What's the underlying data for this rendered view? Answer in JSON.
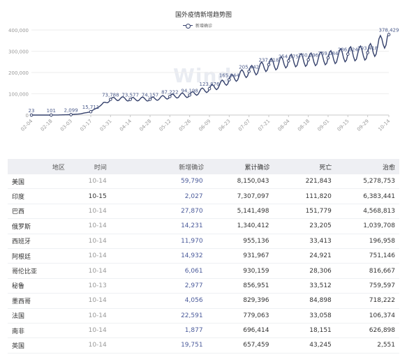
{
  "chart_data": {
    "type": "line",
    "title": "国外疫情新增趋势图",
    "watermark": "Wind",
    "series": [
      {
        "name": "新增确诊",
        "color": "#34406b"
      }
    ],
    "ylim": [
      0,
      400000
    ],
    "yticks": [
      "0",
      "100,000",
      "200,000",
      "300,000",
      "400,000"
    ],
    "xticks": [
      "02-04",
      "02-18",
      "03-03",
      "03-17",
      "03-31",
      "04-14",
      "04-28",
      "05-12",
      "05-26",
      "06-09",
      "06-23",
      "07-07",
      "07-21",
      "08-04",
      "08-18",
      "09-01",
      "09-15",
      "09-29",
      "10-14"
    ],
    "grid": true,
    "anchors": [
      {
        "x": "02-04",
        "y": 23
      },
      {
        "x": "02-11",
        "y": 50
      },
      {
        "x": "02-18",
        "y": 101
      },
      {
        "x": "02-25",
        "y": 600
      },
      {
        "x": "03-03",
        "y": 2099
      },
      {
        "x": "03-10",
        "y": 6000
      },
      {
        "x": "03-17",
        "y": 15711
      },
      {
        "x": "03-24",
        "y": 45000
      },
      {
        "x": "03-31",
        "y": 73788
      },
      {
        "x": "04-07",
        "y": 78000
      },
      {
        "x": "04-14",
        "y": 73577
      },
      {
        "x": "04-21",
        "y": 76000
      },
      {
        "x": "04-28",
        "y": 74157
      },
      {
        "x": "05-05",
        "y": 80000
      },
      {
        "x": "05-12",
        "y": 87222
      },
      {
        "x": "05-19",
        "y": 92000
      },
      {
        "x": "05-26",
        "y": 94198
      },
      {
        "x": "06-02",
        "y": 110000
      },
      {
        "x": "06-09",
        "y": 123876
      },
      {
        "x": "06-16",
        "y": 140000
      },
      {
        "x": "06-23",
        "y": 165944
      },
      {
        "x": "06-30",
        "y": 185000
      },
      {
        "x": "07-07",
        "y": 205442
      },
      {
        "x": "07-14",
        "y": 218000
      },
      {
        "x": "07-21",
        "y": 237118
      },
      {
        "x": "07-28",
        "y": 242000
      },
      {
        "x": "08-04",
        "y": 254575
      },
      {
        "x": "08-11",
        "y": 258000
      },
      {
        "x": "08-18",
        "y": 260296
      },
      {
        "x": "08-25",
        "y": 264000
      },
      {
        "x": "09-01",
        "y": 269084
      },
      {
        "x": "09-08",
        "y": 276000
      },
      {
        "x": "09-15",
        "y": 286624
      },
      {
        "x": "09-22",
        "y": 290000
      },
      {
        "x": "09-29",
        "y": 293418
      },
      {
        "x": "10-06",
        "y": 320000
      },
      {
        "x": "10-14",
        "y": 378429
      }
    ],
    "point_labels": [
      {
        "x": "02-04",
        "text": "23"
      },
      {
        "x": "02-18",
        "text": "101"
      },
      {
        "x": "03-03",
        "text": "2,099"
      },
      {
        "x": "03-17",
        "text": "15,711"
      },
      {
        "x": "03-31",
        "text": "73,788"
      },
      {
        "x": "04-14",
        "text": "73,577"
      },
      {
        "x": "04-28",
        "text": "74,157"
      },
      {
        "x": "05-12",
        "text": "87,222"
      },
      {
        "x": "05-26",
        "text": "94,198"
      },
      {
        "x": "06-09",
        "text": "123,876"
      },
      {
        "x": "06-23",
        "text": "165,944"
      },
      {
        "x": "07-07",
        "text": "205,442"
      },
      {
        "x": "07-21",
        "text": "237,118"
      },
      {
        "x": "08-04",
        "text": "254,575"
      },
      {
        "x": "08-18",
        "text": "260,296"
      },
      {
        "x": "09-01",
        "text": "269,084"
      },
      {
        "x": "09-15",
        "text": "286,624"
      },
      {
        "x": "09-29",
        "text": "293,418"
      },
      {
        "x": "10-14",
        "text": "378,429"
      }
    ]
  },
  "table": {
    "headers": {
      "region": "地区",
      "time": "时间",
      "new": "新增确诊",
      "total": "累计确诊",
      "death": "死亡",
      "cure": "治愈"
    },
    "rows": [
      {
        "region": "美国",
        "time": "10-14",
        "new": "59,790",
        "total": "8,150,043",
        "death": "221,843",
        "cure": "5,278,753"
      },
      {
        "region": "印度",
        "time": "10-15",
        "new": "2,027",
        "total": "7,307,097",
        "death": "111,820",
        "cure": "6,383,441"
      },
      {
        "region": "巴西",
        "time": "10-14",
        "new": "27,870",
        "total": "5,141,498",
        "death": "151,779",
        "cure": "4,568,813"
      },
      {
        "region": "俄罗斯",
        "time": "10-14",
        "new": "14,231",
        "total": "1,340,412",
        "death": "23,205",
        "cure": "1,039,708"
      },
      {
        "region": "西班牙",
        "time": "10-14",
        "new": "11,970",
        "total": "955,136",
        "death": "33,413",
        "cure": "196,958"
      },
      {
        "region": "阿根廷",
        "time": "10-14",
        "new": "14,932",
        "total": "931,967",
        "death": "24,921",
        "cure": "751,146"
      },
      {
        "region": "哥伦比亚",
        "time": "10-14",
        "new": "6,061",
        "total": "930,159",
        "death": "28,306",
        "cure": "816,667"
      },
      {
        "region": "秘鲁",
        "time": "10-13",
        "new": "2,977",
        "total": "856,951",
        "death": "33,512",
        "cure": "759,597"
      },
      {
        "region": "墨西哥",
        "time": "10-14",
        "new": "4,056",
        "total": "829,396",
        "death": "84,898",
        "cure": "718,222"
      },
      {
        "region": "法国",
        "time": "10-14",
        "new": "22,591",
        "total": "779,063",
        "death": "33,058",
        "cure": "106,374"
      },
      {
        "region": "南非",
        "time": "10-14",
        "new": "1,877",
        "total": "696,414",
        "death": "18,151",
        "cure": "626,898"
      },
      {
        "region": "英国",
        "time": "10-14",
        "new": "19,751",
        "total": "657,459",
        "death": "43,245",
        "cure": "2,551"
      }
    ]
  }
}
